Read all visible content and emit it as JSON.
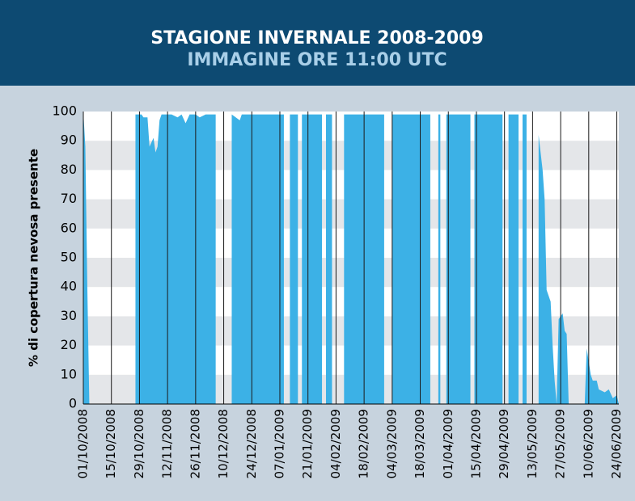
{
  "chart_data": {
    "type": "area",
    "title": "STAGIONE INVERNALE 2008-2009",
    "subtitle": "IMMAGINE ORE 11:00 UTC",
    "ylabel": "% di copertura nevosa presente",
    "color": "#3cb1e6",
    "grid": true,
    "ylim": [
      0,
      100
    ],
    "yticks": [
      0,
      10,
      20,
      30,
      40,
      50,
      60,
      70,
      80,
      90,
      100
    ],
    "xlim": [
      "01/10/2008",
      "25/06/2009"
    ],
    "xticks": [
      "01/10/2008",
      "15/10/2008",
      "29/10/2008",
      "12/11/2008",
      "26/11/2008",
      "10/12/2008",
      "24/12/2008",
      "07/01/2009",
      "21/01/2009",
      "04/02/2009",
      "18/02/2009",
      "04/03/2009",
      "18/03/2009",
      "01/04/2009",
      "15/04/2009",
      "29/04/2009",
      "13/05/2009",
      "27/05/2009",
      "10/06/2009",
      "24/06/2009"
    ],
    "x": [
      "01/10/2008",
      "02/10/2008",
      "03/10/2008",
      "04/10/2008",
      "15/10/2008",
      "27/10/2008",
      "30/10/2008",
      "31/10/2008",
      "02/11/2008",
      "03/11/2008",
      "05/11/2008",
      "06/11/2008",
      "07/11/2008",
      "08/11/2008",
      "09/11/2008",
      "14/11/2008",
      "17/11/2008",
      "19/11/2008",
      "21/11/2008",
      "23/11/2008",
      "26/11/2008",
      "28/11/2008",
      "01/12/2008",
      "06/12/2008",
      "10/12/2008",
      "14/12/2008",
      "18/12/2008",
      "19/12/2008",
      "09/01/2009",
      "10/01/2009",
      "12/01/2009",
      "16/01/2009",
      "17/01/2009",
      "18/01/2009",
      "28/01/2009",
      "29/01/2009",
      "30/01/2009",
      "02/02/2009",
      "05/02/2009",
      "08/02/2009",
      "28/02/2009",
      "02/03/2009",
      "04/03/2009",
      "23/03/2009",
      "25/03/2009",
      "27/03/2009",
      "28/03/2009",
      "29/03/2009",
      "31/03/2009",
      "12/04/2009",
      "13/04/2009",
      "14/04/2009",
      "28/04/2009",
      "30/04/2009",
      "01/05/2009",
      "06/05/2009",
      "07/05/2009",
      "08/05/2009",
      "10/05/2009",
      "13/05/2009",
      "16/05/2009",
      "18/05/2009",
      "19/05/2009",
      "20/05/2009",
      "22/05/2009",
      "23/05/2009",
      "24/05/2009",
      "25/05/2009",
      "26/05/2009",
      "28/05/2009",
      "29/05/2009",
      "30/05/2009",
      "31/05/2009",
      "08/06/2009",
      "09/06/2009",
      "11/06/2009",
      "12/06/2009",
      "14/06/2009",
      "15/06/2009",
      "18/06/2009",
      "20/06/2009",
      "22/06/2009",
      "24/06/2009",
      "25/06/2009"
    ],
    "values": [
      100,
      88,
      40,
      0,
      null,
      99,
      99,
      98,
      98,
      88,
      91,
      86,
      88,
      97,
      99,
      99,
      98,
      99,
      96,
      99,
      99,
      98,
      99,
      99,
      null,
      99,
      97,
      99,
      99,
      null,
      99,
      99,
      null,
      99,
      99,
      null,
      99,
      99,
      null,
      99,
      99,
      null,
      99,
      99,
      null,
      99,
      99,
      null,
      99,
      99,
      null,
      99,
      99,
      null,
      99,
      99,
      null,
      99,
      99,
      null,
      92,
      80,
      70,
      39,
      35,
      20,
      8,
      0,
      29,
      31,
      25,
      24,
      0,
      0,
      19,
      10,
      8,
      8,
      5,
      4,
      5,
      2,
      3,
      0
    ]
  }
}
